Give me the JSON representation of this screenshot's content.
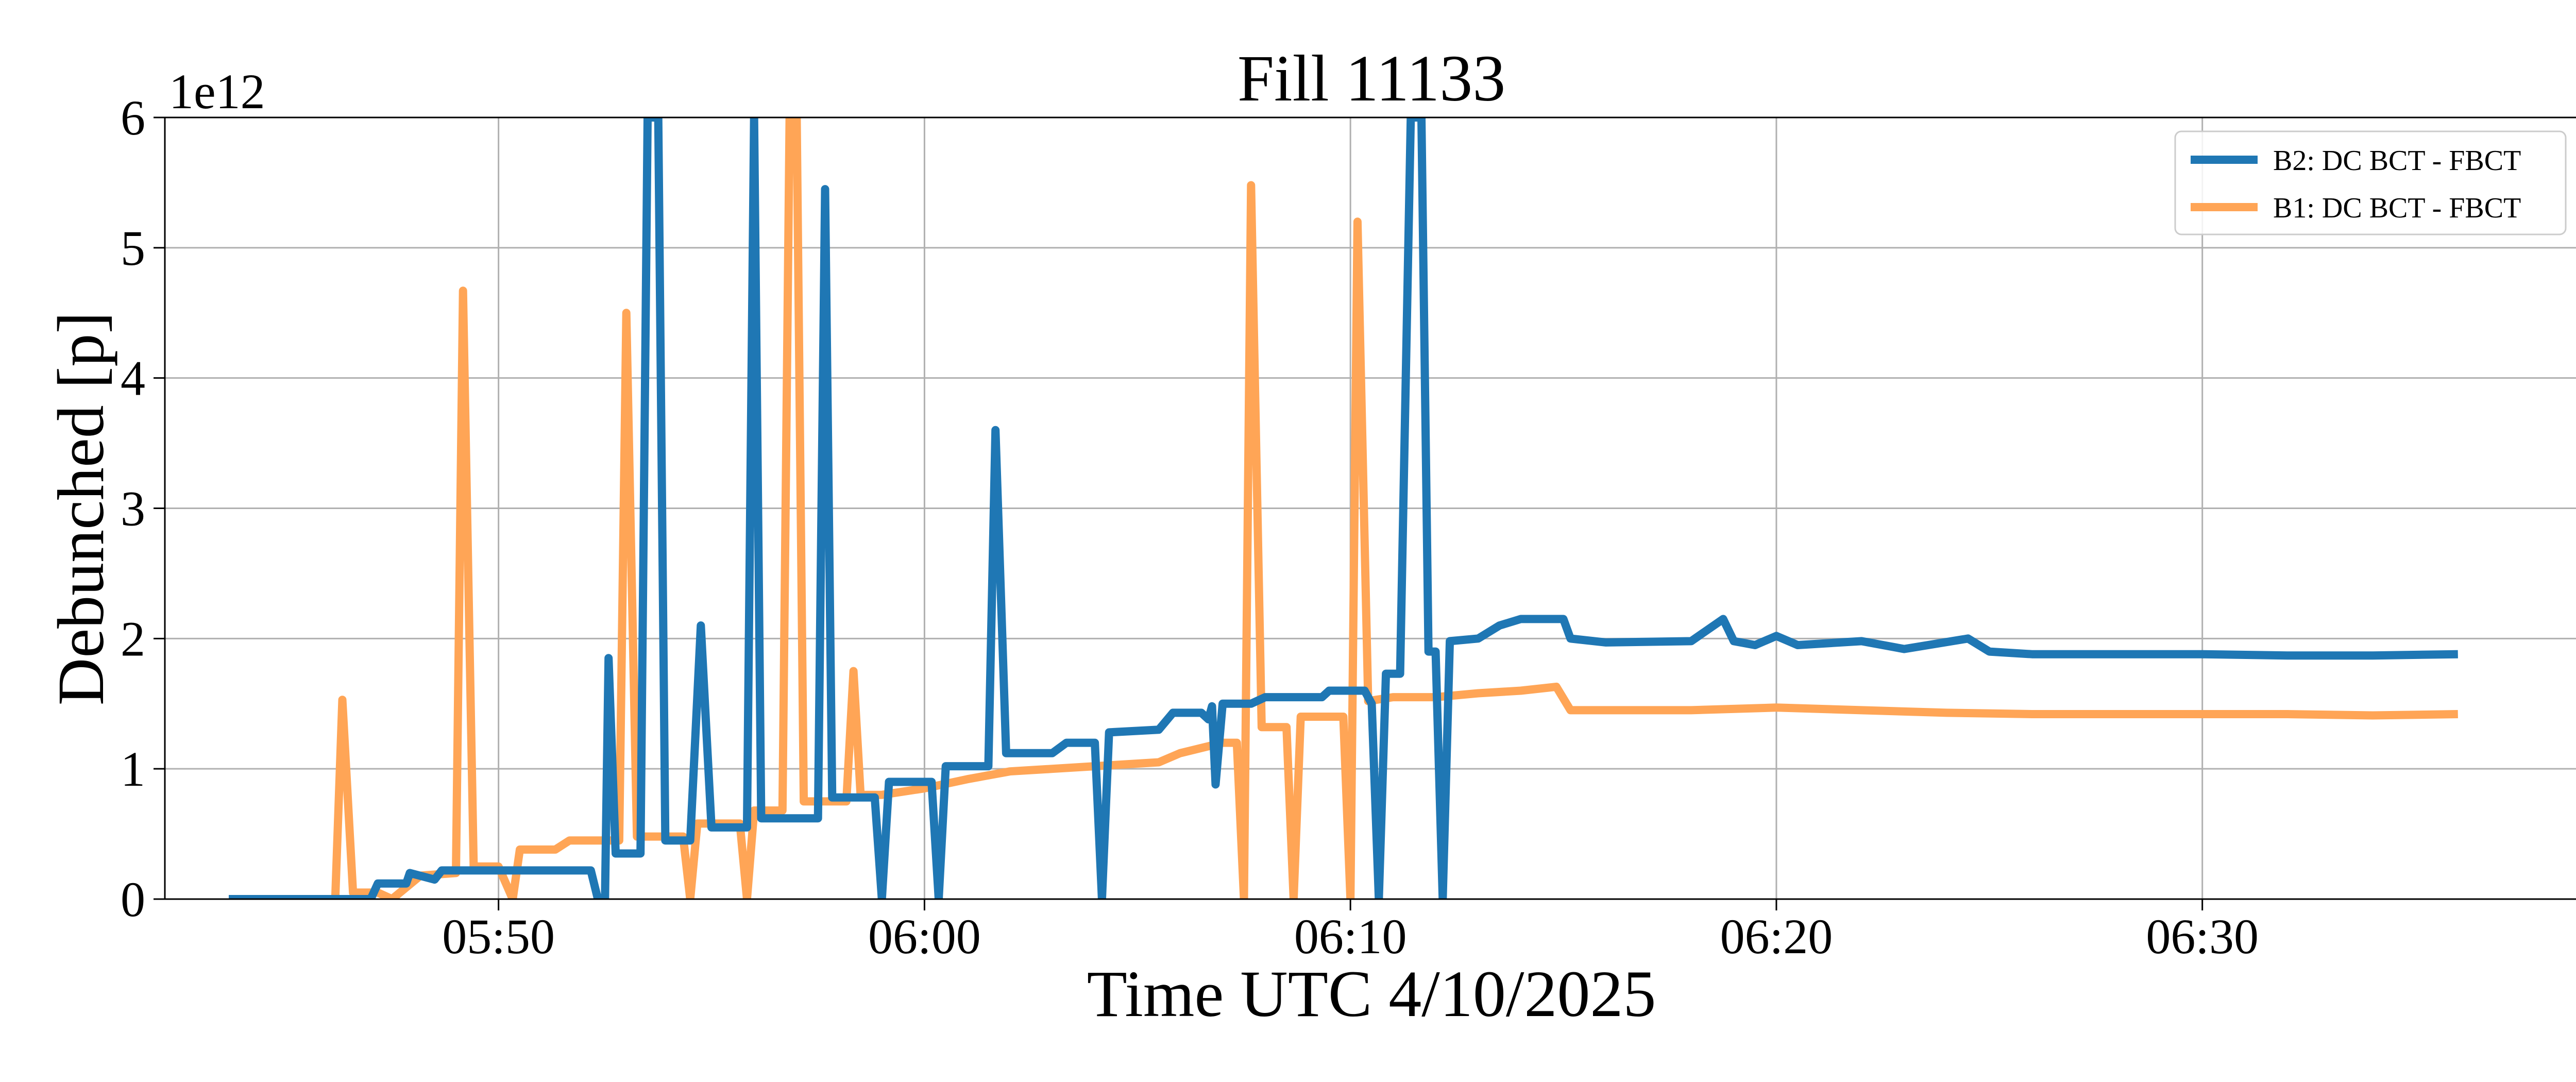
{
  "chart_data": {
    "type": "line",
    "title": "Fill 11133",
    "xlabel": "Time UTC 4/10/2025",
    "ylabel": "Debunched [p]",
    "y_offset_label": "1e12",
    "ylim": [
      0,
      6
    ],
    "yticks": [
      0,
      1,
      2,
      3,
      4,
      5,
      6
    ],
    "ytick_labels": [
      "0",
      "1",
      "2",
      "3",
      "4",
      "5",
      "6"
    ],
    "xlim": [
      "05:42:10",
      "06:38:50"
    ],
    "xticks": [
      "05:50",
      "06:00",
      "06:10",
      "06:20",
      "06:30"
    ],
    "grid": true,
    "legend": "top-right",
    "series": [
      {
        "name": "B2: DC BCT - FBCT",
        "color": "#1f77b4",
        "points": [
          [
            "05:43:40",
            0
          ],
          [
            "05:47:00",
            0
          ],
          [
            "05:47:10",
            0.12
          ],
          [
            "05:47:50",
            0.12
          ],
          [
            "05:47:55",
            0.2
          ],
          [
            "05:48:30",
            0.15
          ],
          [
            "05:48:40",
            0.22
          ],
          [
            "05:52:10",
            0.22
          ],
          [
            "05:52:20",
            0
          ],
          [
            "05:52:30",
            0
          ],
          [
            "05:52:35",
            1.85
          ],
          [
            "05:52:45",
            0.35
          ],
          [
            "05:53:20",
            0.35
          ],
          [
            "05:53:30",
            6.0
          ],
          [
            "05:53:45",
            6.0
          ],
          [
            "05:53:55",
            0.45
          ],
          [
            "05:54:30",
            0.45
          ],
          [
            "05:54:45",
            2.1
          ],
          [
            "05:55:00",
            0.55
          ],
          [
            "05:55:50",
            0.55
          ],
          [
            "05:56:00",
            6.0
          ],
          [
            "05:56:10",
            0.62
          ],
          [
            "05:57:30",
            0.62
          ],
          [
            "05:57:40",
            5.45
          ],
          [
            "05:57:50",
            0.78
          ],
          [
            "05:58:50",
            0.78
          ],
          [
            "05:59:00",
            0
          ],
          [
            "05:59:10",
            0.9
          ],
          [
            "06:00:10",
            0.9
          ],
          [
            "06:00:20",
            0
          ],
          [
            "06:00:30",
            1.02
          ],
          [
            "06:01:30",
            1.02
          ],
          [
            "06:01:40",
            3.6
          ],
          [
            "06:01:55",
            1.12
          ],
          [
            "06:03:00",
            1.12
          ],
          [
            "06:03:20",
            1.2
          ],
          [
            "06:04:00",
            1.2
          ],
          [
            "06:04:10",
            0
          ],
          [
            "06:04:20",
            1.28
          ],
          [
            "06:05:30",
            1.3
          ],
          [
            "06:05:50",
            1.43
          ],
          [
            "06:06:30",
            1.43
          ],
          [
            "06:06:40",
            1.38
          ],
          [
            "06:06:45",
            1.48
          ],
          [
            "06:06:50",
            0.88
          ],
          [
            "06:07:00",
            1.5
          ],
          [
            "06:07:40",
            1.5
          ],
          [
            "06:08:00",
            1.55
          ],
          [
            "06:09:20",
            1.55
          ],
          [
            "06:09:30",
            1.6
          ],
          [
            "06:10:20",
            1.6
          ],
          [
            "06:10:30",
            1.5
          ],
          [
            "06:10:40",
            0
          ],
          [
            "06:10:50",
            1.73
          ],
          [
            "06:11:10",
            1.73
          ],
          [
            "06:11:25",
            6.0
          ],
          [
            "06:11:40",
            6.0
          ],
          [
            "06:11:50",
            1.9
          ],
          [
            "06:12:00",
            1.9
          ],
          [
            "06:12:10",
            0
          ],
          [
            "06:12:20",
            1.98
          ],
          [
            "06:13:00",
            2.0
          ],
          [
            "06:13:30",
            2.1
          ],
          [
            "06:14:00",
            2.15
          ],
          [
            "06:15:00",
            2.15
          ],
          [
            "06:15:10",
            2.0
          ],
          [
            "06:16:00",
            1.97
          ],
          [
            "06:18:00",
            1.98
          ],
          [
            "06:18:45",
            2.15
          ],
          [
            "06:19:00",
            1.98
          ],
          [
            "06:19:30",
            1.95
          ],
          [
            "06:20:00",
            2.02
          ],
          [
            "06:20:30",
            1.95
          ],
          [
            "06:22:00",
            1.98
          ],
          [
            "06:23:00",
            1.92
          ],
          [
            "06:24:30",
            2.0
          ],
          [
            "06:25:00",
            1.9
          ],
          [
            "06:26:00",
            1.88
          ],
          [
            "06:28:00",
            1.88
          ],
          [
            "06:30:00",
            1.88
          ],
          [
            "06:32:00",
            1.87
          ],
          [
            "06:34:00",
            1.87
          ],
          [
            "06:36:00",
            1.88
          ]
        ]
      },
      {
        "name": "B1: DC BCT - FBCT",
        "color": "#ffa556",
        "points": [
          [
            "05:43:40",
            0
          ],
          [
            "05:46:10",
            0
          ],
          [
            "05:46:20",
            1.53
          ],
          [
            "05:46:35",
            0.05
          ],
          [
            "05:47:10",
            0.05
          ],
          [
            "05:47:30",
            0
          ],
          [
            "05:48:10",
            0.18
          ],
          [
            "05:49:00",
            0.2
          ],
          [
            "05:49:10",
            4.67
          ],
          [
            "05:49:25",
            0.25
          ],
          [
            "05:50:00",
            0.25
          ],
          [
            "05:50:20",
            0
          ],
          [
            "05:50:30",
            0.38
          ],
          [
            "05:51:20",
            0.38
          ],
          [
            "05:51:40",
            0.45
          ],
          [
            "05:52:50",
            0.45
          ],
          [
            "05:53:00",
            4.5
          ],
          [
            "05:53:15",
            0.48
          ],
          [
            "05:54:20",
            0.48
          ],
          [
            "05:54:30",
            0
          ],
          [
            "05:54:40",
            0.58
          ],
          [
            "05:55:40",
            0.58
          ],
          [
            "05:55:50",
            0
          ],
          [
            "05:56:00",
            0.68
          ],
          [
            "05:56:40",
            0.68
          ],
          [
            "05:56:50",
            6.0
          ],
          [
            "05:57:00",
            6.0
          ],
          [
            "05:57:10",
            0.75
          ],
          [
            "05:58:10",
            0.75
          ],
          [
            "05:58:20",
            1.75
          ],
          [
            "05:58:30",
            0.8
          ],
          [
            "05:59:00",
            0.8
          ],
          [
            "06:00:00",
            0.85
          ],
          [
            "06:01:00",
            0.92
          ],
          [
            "06:02:00",
            0.98
          ],
          [
            "06:03:00",
            1.0
          ],
          [
            "06:04:00",
            1.02
          ],
          [
            "06:05:30",
            1.05
          ],
          [
            "06:06:00",
            1.12
          ],
          [
            "06:07:00",
            1.2
          ],
          [
            "06:07:20",
            1.2
          ],
          [
            "06:07:30",
            0
          ],
          [
            "06:07:40",
            5.48
          ],
          [
            "06:07:55",
            1.32
          ],
          [
            "06:08:30",
            1.32
          ],
          [
            "06:08:40",
            0
          ],
          [
            "06:08:50",
            1.4
          ],
          [
            "06:09:50",
            1.4
          ],
          [
            "06:10:00",
            0
          ],
          [
            "06:10:10",
            5.2
          ],
          [
            "06:10:25",
            1.52
          ],
          [
            "06:11:00",
            1.55
          ],
          [
            "06:12:00",
            1.55
          ],
          [
            "06:13:00",
            1.58
          ],
          [
            "06:14:00",
            1.6
          ],
          [
            "06:14:50",
            1.63
          ],
          [
            "06:15:10",
            1.45
          ],
          [
            "06:16:00",
            1.45
          ],
          [
            "06:18:00",
            1.45
          ],
          [
            "06:20:00",
            1.47
          ],
          [
            "06:22:00",
            1.45
          ],
          [
            "06:24:00",
            1.43
          ],
          [
            "06:26:00",
            1.42
          ],
          [
            "06:28:00",
            1.42
          ],
          [
            "06:30:00",
            1.42
          ],
          [
            "06:32:00",
            1.42
          ],
          [
            "06:34:00",
            1.41
          ],
          [
            "06:36:00",
            1.42
          ]
        ]
      }
    ]
  }
}
